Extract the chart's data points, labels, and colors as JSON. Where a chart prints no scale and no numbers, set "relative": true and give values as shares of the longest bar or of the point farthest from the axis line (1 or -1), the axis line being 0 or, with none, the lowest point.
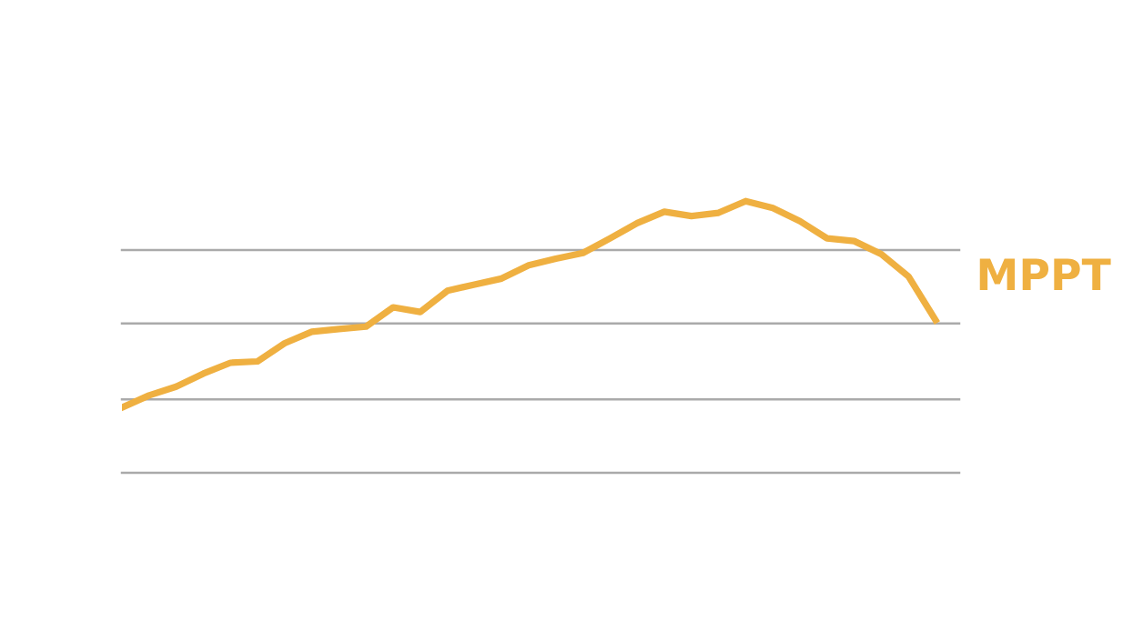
{
  "chart_data": {
    "type": "line",
    "relative": true,
    "legend": false,
    "marker": "none",
    "line_style": "solid",
    "categories": [
      null,
      null,
      null,
      null,
      null,
      null,
      null,
      null,
      null,
      null,
      null,
      null,
      null,
      null,
      null,
      null,
      null,
      null,
      null,
      null,
      null,
      null,
      null,
      null,
      null,
      null,
      null,
      null,
      null,
      null,
      null
    ],
    "series": [
      {
        "name": "MPPT",
        "color": "#efb041",
        "values": [
          0.24,
          0.285,
          0.317,
          0.365,
          0.405,
          0.41,
          0.477,
          0.519,
          0.529,
          0.538,
          0.609,
          0.592,
          0.67,
          0.693,
          0.715,
          0.764,
          0.788,
          0.809,
          0.863,
          0.919,
          0.961,
          0.945,
          0.957,
          1,
          0.975,
          0.926,
          0.863,
          0.853,
          0.805,
          0.723,
          0.562
        ]
      }
    ],
    "ref_lines": [
      {
        "axis": "y",
        "value": 0,
        "color": "#aaaaaa"
      },
      {
        "axis": "y",
        "value": 0.27,
        "color": "#aaaaaa"
      },
      {
        "axis": "y",
        "value": 0.55,
        "color": "#aaaaaa"
      },
      {
        "axis": "y",
        "value": 0.82,
        "color": "#aaaaaa"
      }
    ]
  }
}
